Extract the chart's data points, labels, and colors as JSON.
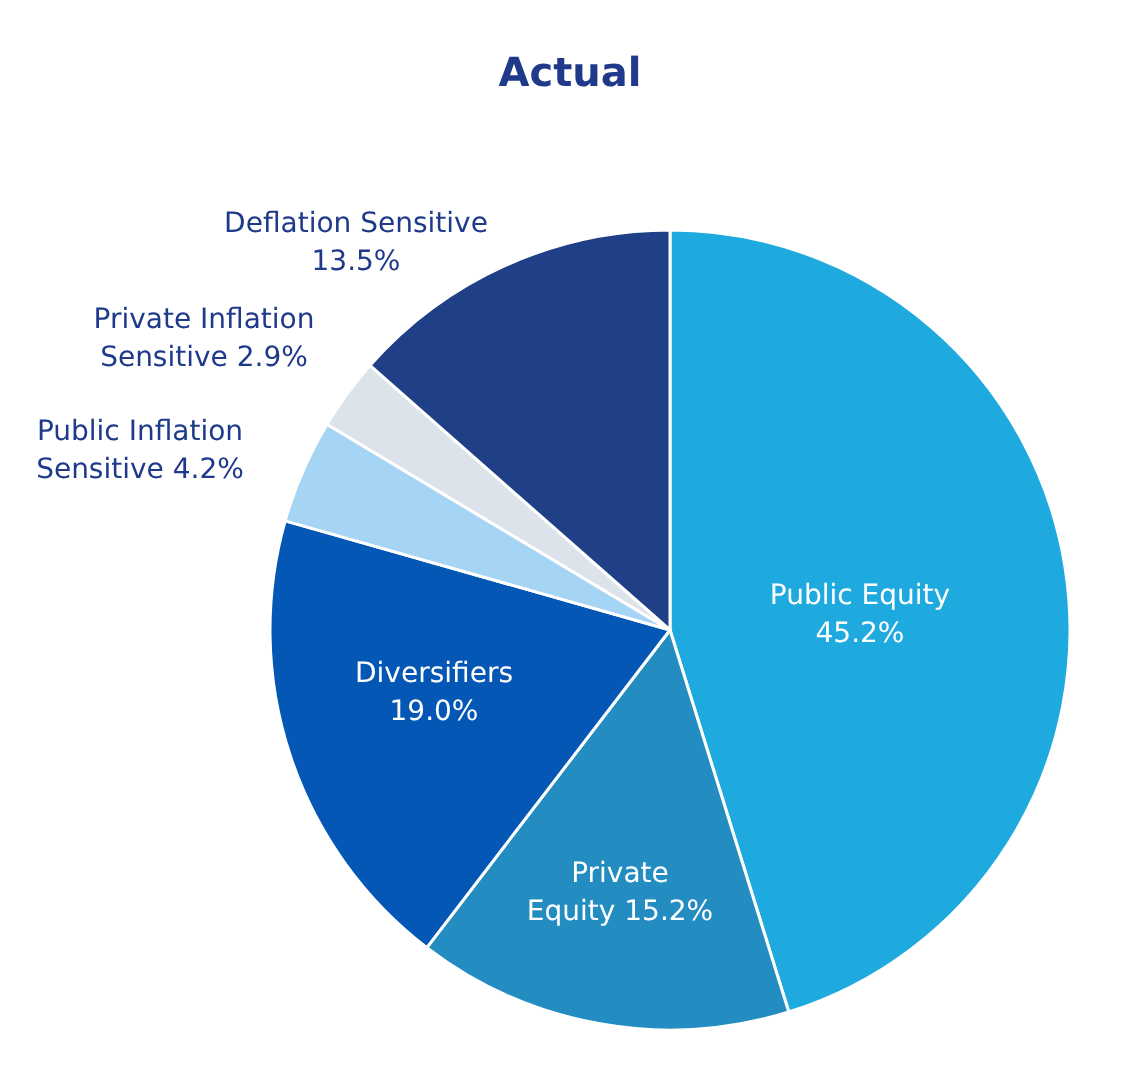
{
  "chart_data": {
    "type": "pie",
    "title": "Actual",
    "categories": [
      "Public Equity",
      "Private Equity",
      "Diversifiers",
      "Public Inflation Sensitive",
      "Private Inflation Sensitive",
      "Deflation Sensitive"
    ],
    "values": [
      45.2,
      15.2,
      19.0,
      4.2,
      2.9,
      13.5
    ],
    "colors": [
      "#1eaadf",
      "#238cc0",
      "#0457b5",
      "#a6d4f5",
      "#dce3ea",
      "#1f3f87"
    ],
    "value_labels": [
      "45.2%",
      "15.2%",
      "19.0%",
      "4.2%",
      "2.9%",
      "13.5%"
    ]
  }
}
